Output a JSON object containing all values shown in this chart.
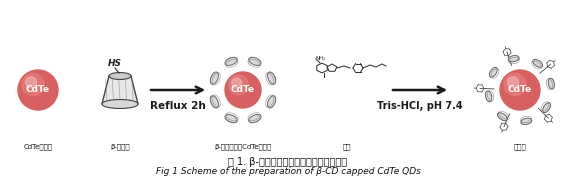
{
  "bg_color": "#ffffff",
  "fig_width": 5.76,
  "fig_height": 1.95,
  "dpi": 100,
  "caption_chinese": "图 1. β-环糊精修饰的量子点的合成示意图",
  "caption_english": "Fig 1 Scheme of the preparation of β-CD capped CdTe QDs",
  "label1_cn": "CdTe量子点",
  "label2_cn": "β-环糊精",
  "label3_cn": "β-环糊精包裹CdTe量子点",
  "label4_cn": "叶酸",
  "label5_cn": "目标物",
  "arrow1_label": "Reflux 2h",
  "arrow2_label": "Tris-HCl, pH 7.4",
  "sphere_color_outer": "#d96060",
  "sphere_color_inner": "#e88080",
  "sphere_highlight": "#f0b0b0",
  "sphere_text_color": "#ffffff",
  "sphere_label": "CdTe",
  "text_color_dark": "#1a1a1a",
  "arrow_color": "#1a1a1a",
  "cd_face_color": "#d0d0d0",
  "cd_edge_color": "#555555",
  "hs_color": "#222222",
  "label_fs": 5.0,
  "caption_cn_fs": 7.0,
  "caption_en_fs": 6.5
}
